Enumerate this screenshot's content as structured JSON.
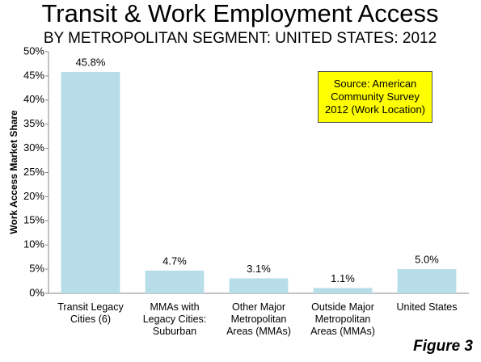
{
  "chart_data": {
    "type": "bar",
    "title": "Transit & Work Employment Access",
    "subtitle": "BY METROPOLITAN SEGMENT: UNITED STATES: 2012",
    "y_label": "Work Access Market Share",
    "categories": [
      "Transit Legacy Cities (6)",
      "MMAs with Legacy Cities: Suburban",
      "Other Major Metropolitan Areas (MMAs)",
      "Outside Major Metropolitan Areas (MMAs)",
      "United States"
    ],
    "values": [
      45.8,
      4.7,
      3.1,
      1.1,
      5.0
    ],
    "value_labels": [
      "45.8%",
      "4.7%",
      "3.1%",
      "1.1%",
      "5.0%"
    ],
    "color": "#b7dde8",
    "ylim": [
      0,
      50
    ],
    "yticks": [
      {
        "value": 0,
        "label": "0%"
      },
      {
        "value": 5,
        "label": "5%"
      },
      {
        "value": 10,
        "label": "10%"
      },
      {
        "value": 15,
        "label": "15%"
      },
      {
        "value": 20,
        "label": "20%"
      },
      {
        "value": 25,
        "label": "25%"
      },
      {
        "value": 30,
        "label": "30%"
      },
      {
        "value": 35,
        "label": "35%"
      },
      {
        "value": 40,
        "label": "40%"
      },
      {
        "value": 45,
        "label": "45%"
      },
      {
        "value": 50,
        "label": "50%"
      }
    ],
    "grid": false,
    "annotation": "Source: American Community Survey 2012 (Work Location)",
    "footer": "Figure 3"
  }
}
